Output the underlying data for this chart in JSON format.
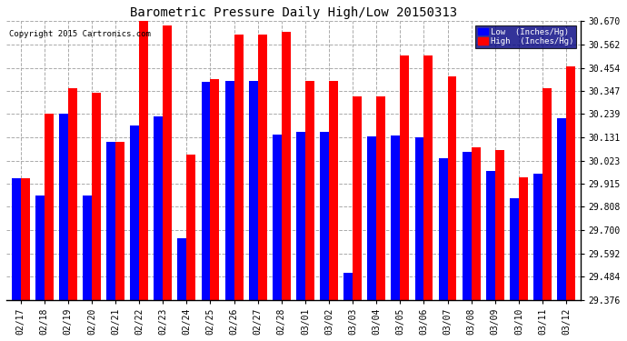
{
  "title": "Barometric Pressure Daily High/Low 20150313",
  "copyright": "Copyright 2015 Cartronics.com",
  "dates": [
    "02/17",
    "02/18",
    "02/19",
    "02/20",
    "02/21",
    "02/22",
    "02/23",
    "02/24",
    "02/25",
    "02/26",
    "02/27",
    "02/28",
    "03/01",
    "03/02",
    "03/03",
    "03/04",
    "03/05",
    "03/06",
    "03/07",
    "03/08",
    "03/09",
    "03/10",
    "03/11",
    "03/12"
  ],
  "low_values": [
    29.94,
    29.86,
    30.24,
    29.86,
    30.11,
    30.185,
    30.23,
    29.66,
    30.39,
    30.395,
    30.395,
    30.145,
    30.155,
    30.155,
    29.5,
    30.135,
    30.14,
    30.13,
    30.035,
    30.065,
    29.975,
    29.85,
    29.96,
    30.22
  ],
  "high_values": [
    29.94,
    30.24,
    30.36,
    30.34,
    30.11,
    30.67,
    30.65,
    30.05,
    30.4,
    30.61,
    30.61,
    30.62,
    30.395,
    30.395,
    30.32,
    30.32,
    30.51,
    30.51,
    30.415,
    30.085,
    30.07,
    29.945,
    30.36,
    30.46
  ],
  "low_color": "#0000ff",
  "high_color": "#ff0000",
  "bg_color": "#ffffff",
  "grid_color": "#aaaaaa",
  "title_color": "#000000",
  "ymin": 29.376,
  "ymax": 30.67,
  "yticks": [
    29.376,
    29.484,
    29.592,
    29.7,
    29.808,
    29.915,
    30.023,
    30.131,
    30.239,
    30.347,
    30.454,
    30.562,
    30.67
  ],
  "bar_width": 0.38,
  "figwidth": 6.9,
  "figheight": 3.75,
  "dpi": 100
}
